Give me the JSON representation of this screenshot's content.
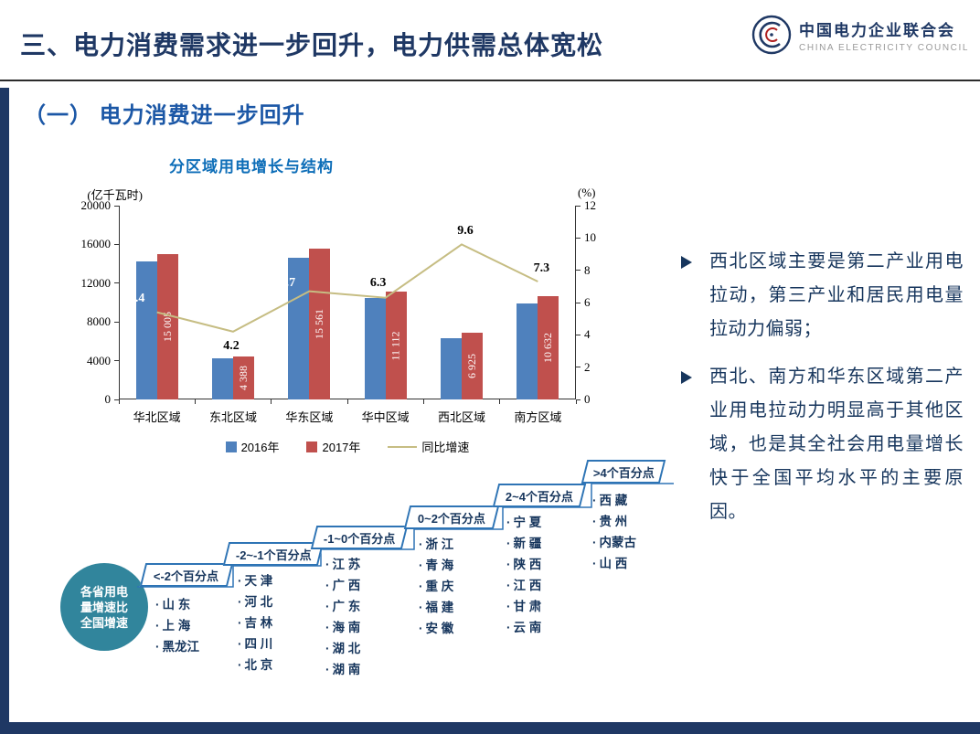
{
  "header": {
    "title": "三、电力消费需求进一步回升，电力供需总体宽松",
    "logo": {
      "org_name_cn": "中国电力企业联合会",
      "org_name_en": "CHINA ELECTRICITY COUNCIL"
    }
  },
  "section": {
    "heading": "（一） 电力消费进一步回升"
  },
  "chart_data": {
    "type": "bar+line combo",
    "title": "分区域用电增长与结构",
    "categories": [
      "华北区域",
      "东北区域",
      "华东区域",
      "华中区域",
      "西北区域",
      "南方区域"
    ],
    "left_axis": {
      "label": "(亿千瓦时)",
      "min": 0,
      "max": 20000,
      "ticks": [
        0,
        4000,
        8000,
        12000,
        16000,
        20000
      ]
    },
    "right_axis": {
      "label": "(%)",
      "min": 0,
      "max": 12,
      "ticks": [
        0,
        2,
        4,
        6,
        8,
        10,
        12
      ]
    },
    "series": [
      {
        "name": "2016年",
        "type": "bar",
        "color": "#4F81BD",
        "values": [
          14237,
          4211,
          14584,
          10453,
          6318,
          9909
        ]
      },
      {
        "name": "2017年",
        "type": "bar",
        "color": "#C0504D",
        "values": [
          15005,
          4388,
          15561,
          11112,
          6925,
          10632
        ],
        "value_labels": [
          "15 005",
          "4 388",
          "15 561",
          "11 112",
          "6 925",
          "10 632"
        ]
      },
      {
        "name": "同比增速",
        "type": "line",
        "axis": "right",
        "color": "#C6BD83",
        "values": [
          5.4,
          4.2,
          6.7,
          6.3,
          9.6,
          7.3
        ],
        "value_labels": [
          "5.4",
          "4.2",
          "6.7",
          "6.3",
          "9.6",
          "7.3"
        ]
      }
    ],
    "legend_position": "bottom",
    "grid": false
  },
  "steps": {
    "badge_label": "各省用电量增速比全国增速",
    "groups": [
      {
        "label": "<-2个百分点",
        "provinces": [
          "山 东",
          "上 海",
          "黑龙江"
        ]
      },
      {
        "label": "-2~-1个百分点",
        "provinces": [
          "天 津",
          "河 北",
          "吉 林",
          "四 川",
          "北 京"
        ]
      },
      {
        "label": "-1~0个百分点",
        "provinces": [
          "江 苏",
          "广 西",
          "广 东",
          "海 南",
          "湖 北",
          "湖 南"
        ]
      },
      {
        "label": "0~2个百分点",
        "provinces": [
          "浙 江",
          "青 海",
          "重 庆",
          "福 建",
          "安 徽"
        ]
      },
      {
        "label": "2~4个百分点",
        "provinces": [
          "宁 夏",
          "新 疆",
          "陕 西",
          "江 西",
          "甘 肃",
          "云 南"
        ]
      },
      {
        "label": ">4个百分点",
        "provinces": [
          "西 藏",
          "贵 州",
          "内蒙古",
          "山 西"
        ]
      }
    ]
  },
  "notes": {
    "bullets": [
      "西北区域主要是第二产业用电拉动，第三产业和居民用电量拉动力偏弱；",
      "西北、南方和华东区域第二产业用电拉动力明显高于其他区域，也是其全社会用电量增长快于全国平均水平的主要原因。"
    ]
  },
  "colors": {
    "navy": "#1F3864",
    "section_blue": "#1B57A6",
    "chart_title_blue": "#0E6EB8",
    "bar_2016": "#4F81BD",
    "bar_2017": "#C0504D",
    "growth_line": "#C6BD83",
    "step_border": "#2E74B5",
    "badge_teal": "#31859C"
  }
}
